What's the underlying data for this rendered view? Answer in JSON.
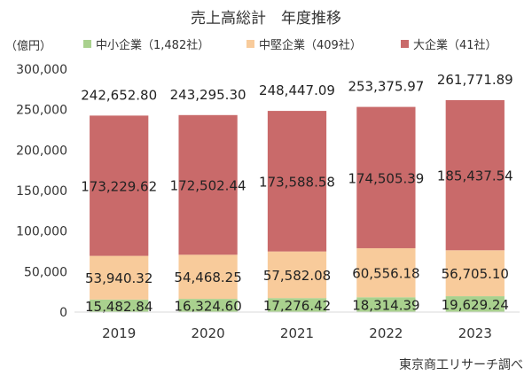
{
  "chart_data": {
    "type": "bar",
    "stacked": true,
    "title": "売上高総計　年度推移",
    "unit_label": "（億円）",
    "source": "東京商工リサーチ調べ",
    "categories": [
      "2019",
      "2020",
      "2021",
      "2022",
      "2023"
    ],
    "ylim": [
      0,
      300000
    ],
    "yticks": [
      0,
      50000,
      100000,
      150000,
      200000,
      250000,
      300000
    ],
    "ytick_labels": [
      "0",
      "50,000",
      "100,000",
      "150,000",
      "200,000",
      "250,000",
      "300,000"
    ],
    "grid": false,
    "legend_position": "top",
    "series": [
      {
        "name": "中小企業（1,482社）",
        "color": "#a9d18e",
        "values": [
          15482.84,
          16324.6,
          17276.42,
          18314.39,
          19629.24
        ],
        "labels": [
          "15,482.84",
          "16,324.60",
          "17,276.42",
          "18,314.39",
          "19,629.24"
        ]
      },
      {
        "name": "中堅企業（409社）",
        "color": "#f8cb9b",
        "values": [
          53940.32,
          54468.25,
          57582.08,
          60556.18,
          56705.1
        ],
        "labels": [
          "53,940.32",
          "54,468.25",
          "57,582.08",
          "60,556.18",
          "56,705.10"
        ]
      },
      {
        "name": "大企業（41社）",
        "color": "#c96a6a",
        "values": [
          173229.62,
          172502.44,
          173588.58,
          174505.39,
          185437.54
        ],
        "labels": [
          "173,229.62",
          "172,502.44",
          "173,588.58",
          "174,505.39",
          "185,437.54"
        ]
      }
    ],
    "totals": [
      242652.8,
      243295.3,
      248447.09,
      253375.97,
      261771.89
    ],
    "total_labels": [
      "242,652.80",
      "243,295.30",
      "248,447.09",
      "253,375.97",
      "261,771.89"
    ]
  }
}
